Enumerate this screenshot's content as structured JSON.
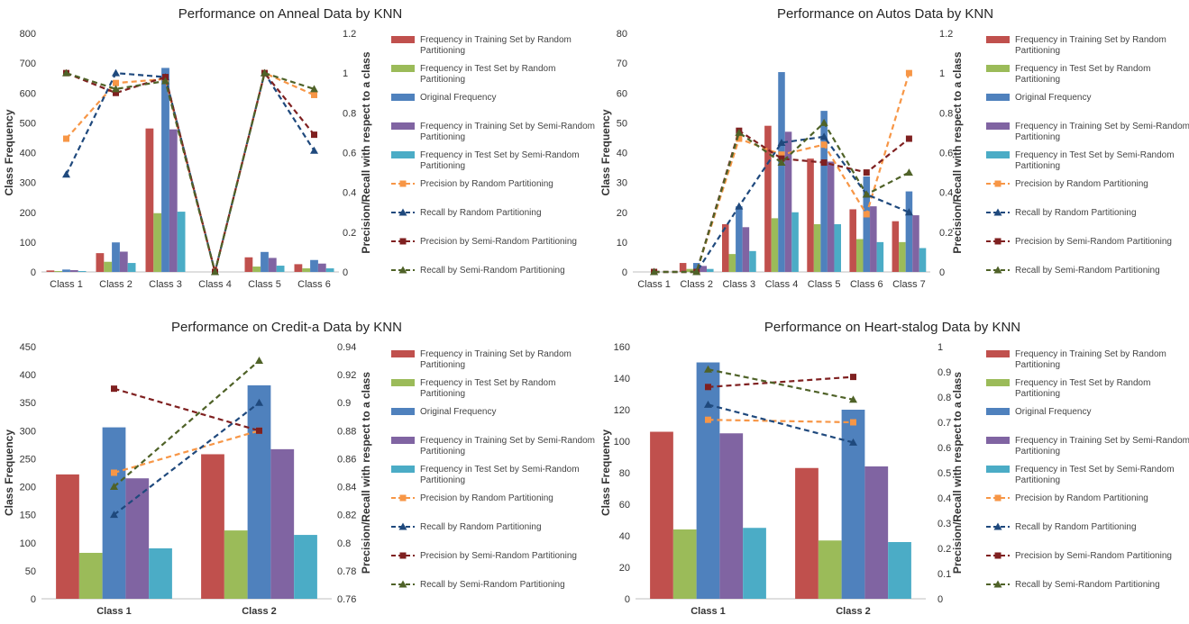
{
  "chart_data": [
    {
      "type": "bar",
      "title": "Performance on Anneal Data by KNN",
      "ylabel": "Class Frequency",
      "y2label": "Precision/Recall with respect to a class",
      "categories": [
        "Class 1",
        "Class 2",
        "Class 3",
        "Class 4",
        "Class 5",
        "Class 6"
      ],
      "ylim": [
        0,
        800
      ],
      "yticks": [
        0,
        100,
        200,
        300,
        400,
        500,
        600,
        700,
        800
      ],
      "y2lim": [
        0,
        1.2
      ],
      "y2ticks": [
        "0",
        "0.2",
        "0.4",
        "0.6",
        "0.8",
        "1",
        "1.2"
      ],
      "bar_series": [
        {
          "name": "Frequency in Training Set by Random Partitioning",
          "color": "#C0504D",
          "values": [
            5,
            63,
            481,
            0,
            49,
            26
          ]
        },
        {
          "name": "Frequency in Test Set by Random Partitioning",
          "color": "#9BBB59",
          "values": [
            3,
            34,
            197,
            0,
            18,
            12
          ]
        },
        {
          "name": "Original Frequency",
          "color": "#4F81BD",
          "values": [
            8,
            99,
            684,
            0,
            67,
            40
          ]
        },
        {
          "name": "Frequency in Training Set by Semi-Random Partitioning",
          "color": "#8064A2",
          "values": [
            6,
            68,
            478,
            0,
            47,
            28
          ]
        },
        {
          "name": "Frequency in Test Set by  Semi-Random Partitioning",
          "color": "#4BACC6",
          "values": [
            3,
            30,
            202,
            0,
            21,
            12
          ]
        }
      ],
      "line_series": [
        {
          "name": "Precision by Random Partitioning",
          "color": "#F79646",
          "marker": "square",
          "values": [
            0.67,
            0.95,
            0.97,
            0,
            1.0,
            0.89
          ]
        },
        {
          "name": "Recall by Random Partitioning",
          "color": "#1F497D",
          "marker": "triangle",
          "values": [
            0.49,
            1.0,
            0.98,
            0,
            1.0,
            0.61
          ]
        },
        {
          "name": "Precision by Semi-Random Partitioning",
          "color": "#7F2020",
          "marker": "square",
          "values": [
            1.0,
            0.9,
            0.98,
            0,
            1.0,
            0.69
          ]
        },
        {
          "name": "Recall by  Semi-Random Partitioning",
          "color": "#4F6228",
          "marker": "triangle",
          "values": [
            1.0,
            0.92,
            0.96,
            0,
            1.0,
            0.92
          ]
        }
      ]
    },
    {
      "type": "bar",
      "title": "Performance on Autos Data by KNN",
      "ylabel": "Class Frequency",
      "y2label": "Precision/Recall with respect to a class",
      "categories": [
        "Class 1",
        "Class 2",
        "Class 3",
        "Class 4",
        "Class 5",
        "Class 6",
        "Class 7"
      ],
      "ylim": [
        0,
        80
      ],
      "yticks": [
        0,
        10,
        20,
        30,
        40,
        50,
        60,
        70,
        80
      ],
      "y2lim": [
        0,
        1.2
      ],
      "y2ticks": [
        "0",
        "0.2",
        "0.4",
        "0.6",
        "0.8",
        "1",
        "1.2"
      ],
      "bar_series": [
        {
          "name": "Frequency in Training Set by Random Partitioning",
          "color": "#C0504D",
          "values": [
            0,
            3,
            16,
            49,
            38,
            21,
            17
          ]
        },
        {
          "name": "Frequency in Test Set by Random Partitioning",
          "color": "#9BBB59",
          "values": [
            0,
            1,
            6,
            18,
            16,
            11,
            10
          ]
        },
        {
          "name": "Original Frequency",
          "color": "#4F81BD",
          "values": [
            0,
            3,
            22,
            67,
            54,
            32,
            27
          ]
        },
        {
          "name": "Frequency in Training Set by Semi-Random Partitioning",
          "color": "#8064A2",
          "values": [
            0,
            2,
            15,
            47,
            37,
            22,
            19
          ]
        },
        {
          "name": "Frequency in Test Set by  Semi-Random Partitioning",
          "color": "#4BACC6",
          "values": [
            0,
            1,
            7,
            20,
            16,
            10,
            8
          ]
        }
      ],
      "line_series": [
        {
          "name": "Precision by Random Partitioning",
          "color": "#F79646",
          "marker": "square",
          "values": [
            0,
            0,
            0.67,
            0.59,
            0.64,
            0.29,
            1.0
          ]
        },
        {
          "name": "Recall by Random Partitioning",
          "color": "#1F497D",
          "marker": "triangle",
          "values": [
            0,
            0,
            0.33,
            0.65,
            0.68,
            0.39,
            0.3
          ]
        },
        {
          "name": "Precision by Semi-Random Partitioning",
          "color": "#7F2020",
          "marker": "square",
          "values": [
            0,
            0,
            0.71,
            0.57,
            0.55,
            0.5,
            0.67
          ]
        },
        {
          "name": "Recall by  Semi-Random Partitioning",
          "color": "#4F6228",
          "marker": "triangle",
          "values": [
            0,
            0,
            0.7,
            0.55,
            0.75,
            0.39,
            0.5
          ]
        }
      ]
    },
    {
      "type": "bar",
      "title": "Performance on Credit-a Data by KNN",
      "ylabel": "Class Frequency",
      "y2label": "Precision/Recall with respect to a class",
      "categories": [
        "Class 1",
        "Class 2"
      ],
      "ylim": [
        0,
        450
      ],
      "yticks": [
        0,
        50,
        100,
        150,
        200,
        250,
        300,
        350,
        400,
        450
      ],
      "y2lim": [
        0.76,
        0.94
      ],
      "y2ticks": [
        "0.76",
        "0.78",
        "0.8",
        "0.82",
        "0.84",
        "0.86",
        "0.88",
        "0.9",
        "0.92",
        "0.94"
      ],
      "bar_series": [
        {
          "name": "Frequency in Training Set by Random Partitioning",
          "color": "#C0504D",
          "values": [
            222,
            258
          ]
        },
        {
          "name": "Frequency in Test Set by Random Partitioning",
          "color": "#9BBB59",
          "values": [
            82,
            122
          ]
        },
        {
          "name": "Original Frequency",
          "color": "#4F81BD",
          "values": [
            306,
            381
          ]
        },
        {
          "name": "Frequency in Training Set by Semi-Random Partitioning",
          "color": "#8064A2",
          "values": [
            215,
            267
          ]
        },
        {
          "name": "Frequency in Test Set by  Semi-Random Partitioning",
          "color": "#4BACC6",
          "values": [
            90,
            114
          ]
        }
      ],
      "line_series": [
        {
          "name": "Precision by Random Partitioning",
          "color": "#F79646",
          "marker": "square",
          "values": [
            0.85,
            0.88
          ]
        },
        {
          "name": "Recall by Random Partitioning",
          "color": "#1F497D",
          "marker": "triangle",
          "values": [
            0.82,
            0.9
          ]
        },
        {
          "name": "Precision by Semi-Random Partitioning",
          "color": "#7F2020",
          "marker": "square",
          "values": [
            0.91,
            0.88
          ]
        },
        {
          "name": "Recall by  Semi-Random Partitioning",
          "color": "#4F6228",
          "marker": "triangle",
          "values": [
            0.84,
            0.93
          ]
        }
      ]
    },
    {
      "type": "bar",
      "title": "Performance on Heart-stalog Data by KNN",
      "ylabel": "Class Frequency",
      "y2label": "Precision/Recall with respect to a class",
      "categories": [
        "Class 1",
        "Class 2"
      ],
      "ylim": [
        0,
        160
      ],
      "yticks": [
        0,
        20,
        40,
        60,
        80,
        100,
        120,
        140,
        160
      ],
      "y2lim": [
        0,
        1
      ],
      "y2ticks": [
        "0",
        "0.1",
        "0.2",
        "0.3",
        "0.4",
        "0.5",
        "0.6",
        "0.7",
        "0.8",
        "0.9",
        "1"
      ],
      "bar_series": [
        {
          "name": "Frequency in Training Set by Random Partitioning",
          "color": "#C0504D",
          "values": [
            106,
            83
          ]
        },
        {
          "name": "Frequency in Test Set by Random Partitioning",
          "color": "#9BBB59",
          "values": [
            44,
            37
          ]
        },
        {
          "name": "Original Frequency",
          "color": "#4F81BD",
          "values": [
            150,
            120
          ]
        },
        {
          "name": "Frequency in Training Set by Semi-Random Partitioning",
          "color": "#8064A2",
          "values": [
            105,
            84
          ]
        },
        {
          "name": "Frequency in Test Set by  Semi-Random Partitioning",
          "color": "#4BACC6",
          "values": [
            45,
            36
          ]
        }
      ],
      "line_series": [
        {
          "name": "Precision by Random Partitioning",
          "color": "#F79646",
          "marker": "square",
          "values": [
            0.71,
            0.7
          ]
        },
        {
          "name": "Recall by Random Partitioning",
          "color": "#1F497D",
          "marker": "triangle",
          "values": [
            0.77,
            0.62
          ]
        },
        {
          "name": "Precision by Semi-Random Partitioning",
          "color": "#7F2020",
          "marker": "square",
          "values": [
            0.84,
            0.88
          ]
        },
        {
          "name": "Recall by  Semi-Random Partitioning",
          "color": "#4F6228",
          "marker": "triangle",
          "values": [
            0.91,
            0.79
          ]
        }
      ]
    }
  ]
}
